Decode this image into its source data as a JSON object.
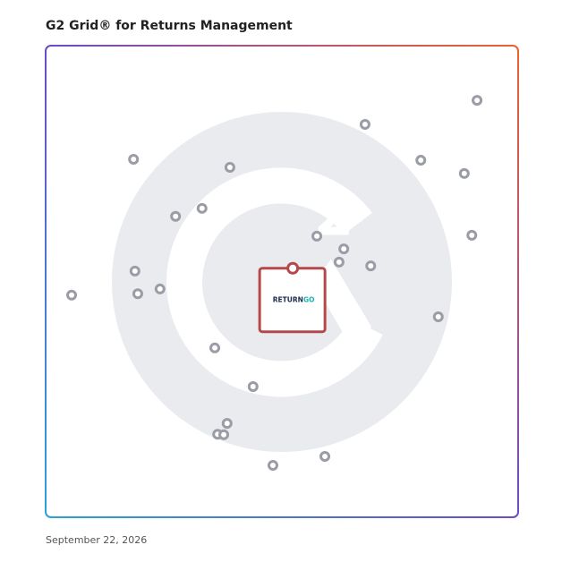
{
  "chart_data": {
    "type": "scatter",
    "title": "G2 Grid® for Returns Management",
    "date": "September 22, 2026",
    "xlim": [
      0,
      100
    ],
    "ylim": [
      0,
      100
    ],
    "color": "#9a9ca6",
    "x": [
      91.3,
      67.6,
      79.4,
      88.6,
      90.2,
      18.6,
      39.0,
      33.1,
      27.5,
      57.4,
      63.1,
      62.1,
      68.8,
      18.9,
      5.5,
      19.5,
      24.2,
      83.1,
      35.8,
      43.9,
      38.4,
      36.4,
      37.7,
      48.1,
      59.1
    ],
    "values": [
      88.4,
      83.3,
      75.7,
      72.9,
      59.8,
      75.9,
      74.2,
      65.5,
      63.8,
      59.6,
      56.9,
      54.1,
      53.3,
      52.2,
      47.1,
      47.4,
      48.4,
      42.5,
      35.9,
      27.7,
      19.9,
      17.6,
      17.5,
      11.0,
      12.9
    ],
    "highlight": {
      "x": 52.3,
      "y": 52.8,
      "label_parts": [
        "RETURN",
        "GO"
      ],
      "color": "#b5484a"
    }
  }
}
